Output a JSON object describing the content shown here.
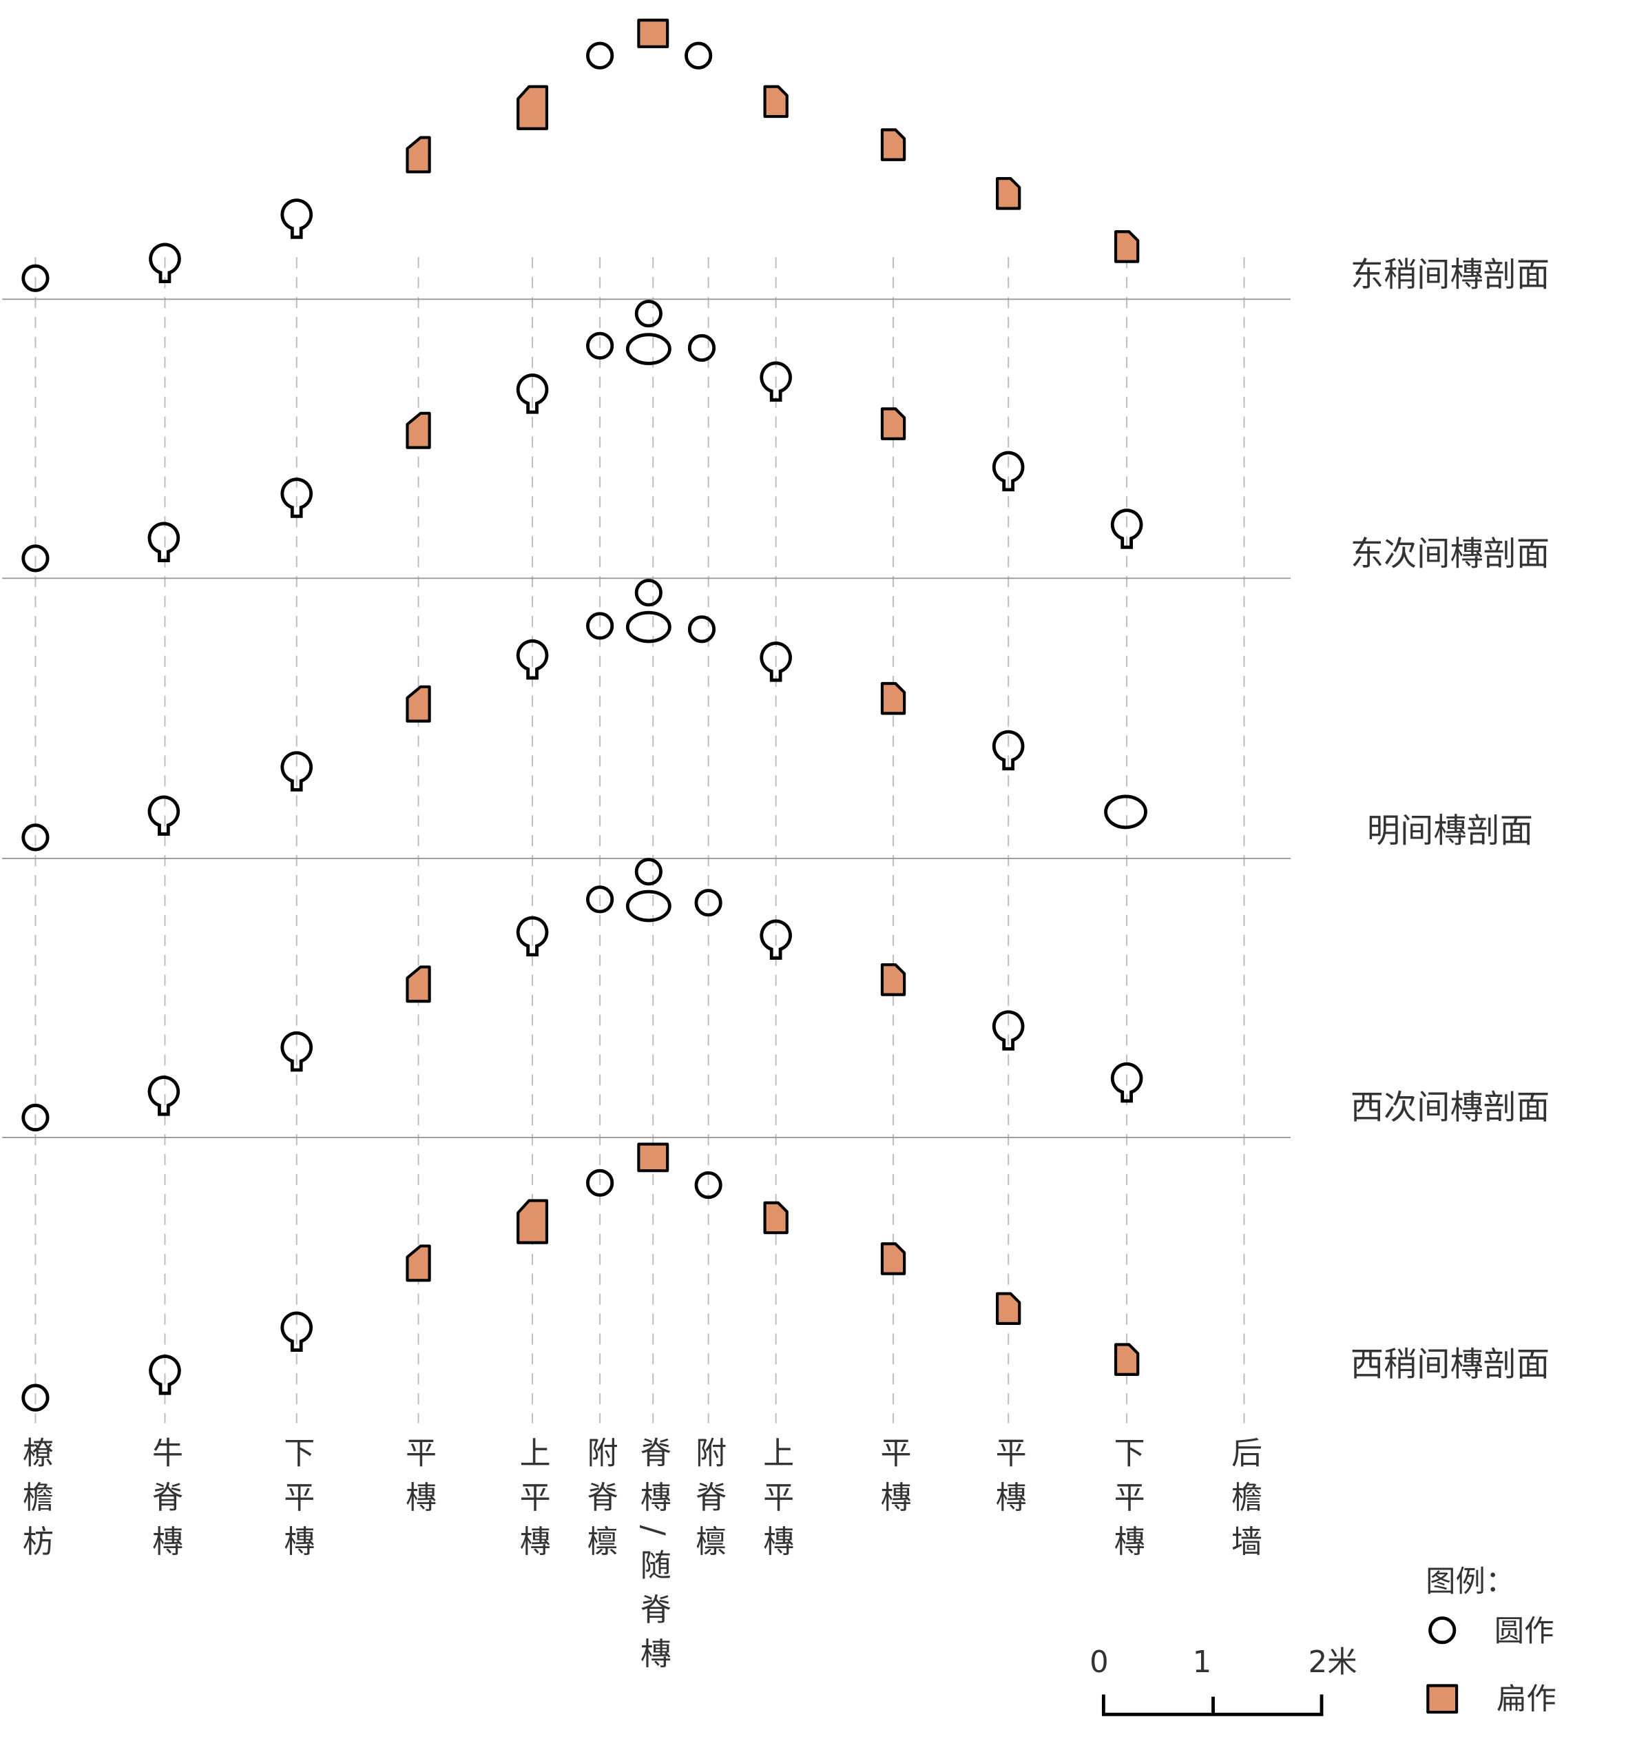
{
  "sections": [
    {
      "label": "东稍间槫剖面"
    },
    {
      "label": "东次间槫剖面"
    },
    {
      "label": "明间槫剖面"
    },
    {
      "label": "西次间槫剖面"
    },
    {
      "label": "西稍间槫剖面"
    }
  ],
  "columns": [
    {
      "label": "橑檐枋"
    },
    {
      "label": "牛脊槫"
    },
    {
      "label": "下平槫"
    },
    {
      "label": "平槫"
    },
    {
      "label": "上平槫"
    },
    {
      "label": "附脊檩"
    },
    {
      "label": "脊槫/随脊槫"
    },
    {
      "label": "附脊檩"
    },
    {
      "label": "上平槫"
    },
    {
      "label": "平槫"
    },
    {
      "label": "平槫"
    },
    {
      "label": "下平槫"
    },
    {
      "label": "后檐墙"
    }
  ],
  "legend": {
    "title": "图例：",
    "items": [
      {
        "label": "圆作"
      },
      {
        "label": "扁作"
      }
    ]
  },
  "scale_bar": {
    "ticks": [
      "0",
      "1",
      "2米"
    ]
  }
}
